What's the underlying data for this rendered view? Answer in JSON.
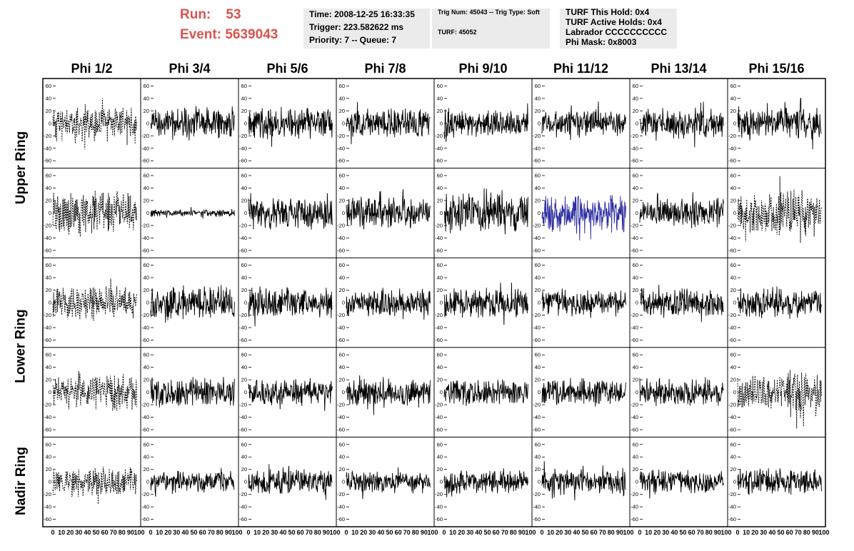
{
  "run": {
    "run_label": "Run:",
    "run_value": "53",
    "event_label": "Event:",
    "event_value": "5639043"
  },
  "info_panel": {
    "time": "Time: 2008-12-25 16:33:35",
    "trigger": "Trigger: 223.582622 ms",
    "priority": "Priority: 7 -- Queue: 7"
  },
  "trig_panel": {
    "trig": "Trig Num: 45043 -- Trig Type: Soft",
    "turf": "TURF: 45052"
  },
  "turf_panel": {
    "this_hold": "TURF This Hold: 0x4",
    "active_holds": "TURF Active Holds: 0x4",
    "labrador": "Labrador CCCCCCCCCC",
    "phi_mask": "Phi Mask: 0x8003"
  },
  "columns": [
    "Phi 1/2",
    "Phi 3/4",
    "Phi 5/6",
    "Phi 7/8",
    "Phi 9/10",
    "Phi 11/12",
    "Phi 13/14",
    "Phi 15/16"
  ],
  "rows": [
    "Upper Ring",
    "Upper Ring",
    "Lower Ring",
    "Lower Ring",
    "Nadir Ring"
  ],
  "ring_labels": [
    {
      "text": "Upper Ring",
      "rows": [
        0,
        1
      ]
    },
    {
      "text": "Lower Ring",
      "rows": [
        2,
        3
      ]
    },
    {
      "text": "Nadir Ring",
      "rows": [
        4,
        4
      ]
    }
  ],
  "y_ticks": [
    "60",
    "40",
    "20",
    "0",
    "-20",
    "-40",
    "-60"
  ],
  "x_ticks": [
    "0",
    "10",
    "20",
    "30",
    "40",
    "50",
    "60",
    "70",
    "80",
    "90",
    "100"
  ],
  "colors": {
    "trace": "#000000",
    "highlight_trace": "#2c2ca0",
    "run_text": "#d9534f",
    "panel_bg": "#ebebeb"
  },
  "chart_data": {
    "type": "line",
    "grid": false,
    "xlim": [
      0,
      100
    ],
    "ylim": [
      -65,
      65
    ],
    "panels": [
      {
        "row": 0,
        "col": 0,
        "style": "dashed",
        "amplitude": 20,
        "seed": 11
      },
      {
        "row": 0,
        "col": 1,
        "style": "solid",
        "amplitude": 18,
        "seed": 12
      },
      {
        "row": 0,
        "col": 2,
        "style": "solid",
        "amplitude": 18,
        "seed": 13
      },
      {
        "row": 0,
        "col": 3,
        "style": "solid",
        "amplitude": 16,
        "seed": 14
      },
      {
        "row": 0,
        "col": 4,
        "style": "solid",
        "amplitude": 16,
        "seed": 15
      },
      {
        "row": 0,
        "col": 5,
        "style": "solid",
        "amplitude": 15,
        "seed": 16
      },
      {
        "row": 0,
        "col": 6,
        "style": "solid",
        "amplitude": 17,
        "seed": 17
      },
      {
        "row": 0,
        "col": 7,
        "style": "solid",
        "amplitude": 18,
        "seed": 18
      },
      {
        "row": 1,
        "col": 0,
        "style": "dashed",
        "amplitude": 25,
        "seed": 21
      },
      {
        "row": 1,
        "col": 1,
        "style": "solid",
        "amplitude": 4,
        "seed": 22
      },
      {
        "row": 1,
        "col": 2,
        "style": "solid",
        "amplitude": 18,
        "seed": 23
      },
      {
        "row": 1,
        "col": 3,
        "style": "solid",
        "amplitude": 18,
        "seed": 24
      },
      {
        "row": 1,
        "col": 4,
        "style": "solid",
        "amplitude": 22,
        "seed": 25
      },
      {
        "row": 1,
        "col": 5,
        "style": "blue",
        "amplitude": 22,
        "seed": 26
      },
      {
        "row": 1,
        "col": 6,
        "style": "solid",
        "amplitude": 15,
        "seed": 27
      },
      {
        "row": 1,
        "col": 7,
        "style": "dashed",
        "amplitude": 25,
        "seed": 28
      },
      {
        "row": 2,
        "col": 0,
        "style": "dashed",
        "amplitude": 18,
        "seed": 31
      },
      {
        "row": 2,
        "col": 1,
        "style": "solid",
        "amplitude": 18,
        "seed": 32
      },
      {
        "row": 2,
        "col": 2,
        "style": "solid",
        "amplitude": 17,
        "seed": 33
      },
      {
        "row": 2,
        "col": 3,
        "style": "solid",
        "amplitude": 15,
        "seed": 34
      },
      {
        "row": 2,
        "col": 4,
        "style": "solid",
        "amplitude": 16,
        "seed": 35
      },
      {
        "row": 2,
        "col": 5,
        "style": "solid",
        "amplitude": 15,
        "seed": 36
      },
      {
        "row": 2,
        "col": 6,
        "style": "solid",
        "amplitude": 17,
        "seed": 37
      },
      {
        "row": 2,
        "col": 7,
        "style": "solid",
        "amplitude": 17,
        "seed": 38
      },
      {
        "row": 3,
        "col": 0,
        "style": "dashed",
        "amplitude": 20,
        "seed": 41
      },
      {
        "row": 3,
        "col": 1,
        "style": "solid",
        "amplitude": 16,
        "seed": 42
      },
      {
        "row": 3,
        "col": 2,
        "style": "solid",
        "amplitude": 14,
        "seed": 43
      },
      {
        "row": 3,
        "col": 3,
        "style": "solid",
        "amplitude": 16,
        "seed": 44
      },
      {
        "row": 3,
        "col": 4,
        "style": "solid",
        "amplitude": 15,
        "seed": 45
      },
      {
        "row": 3,
        "col": 5,
        "style": "solid",
        "amplitude": 15,
        "seed": 46
      },
      {
        "row": 3,
        "col": 6,
        "style": "solid",
        "amplitude": 15,
        "seed": 47
      },
      {
        "row": 3,
        "col": 7,
        "style": "dashed",
        "amplitude": 24,
        "seed": 48
      },
      {
        "row": 4,
        "col": 0,
        "style": "dashed",
        "amplitude": 16,
        "seed": 51
      },
      {
        "row": 4,
        "col": 1,
        "style": "solid",
        "amplitude": 12,
        "seed": 52
      },
      {
        "row": 4,
        "col": 2,
        "style": "solid",
        "amplitude": 14,
        "seed": 53
      },
      {
        "row": 4,
        "col": 3,
        "style": "solid",
        "amplitude": 12,
        "seed": 54
      },
      {
        "row": 4,
        "col": 4,
        "style": "solid",
        "amplitude": 13,
        "seed": 55
      },
      {
        "row": 4,
        "col": 5,
        "style": "solid",
        "amplitude": 14,
        "seed": 56
      },
      {
        "row": 4,
        "col": 6,
        "style": "solid",
        "amplitude": 13,
        "seed": 57
      },
      {
        "row": 4,
        "col": 7,
        "style": "solid",
        "amplitude": 15,
        "seed": 58
      }
    ]
  }
}
